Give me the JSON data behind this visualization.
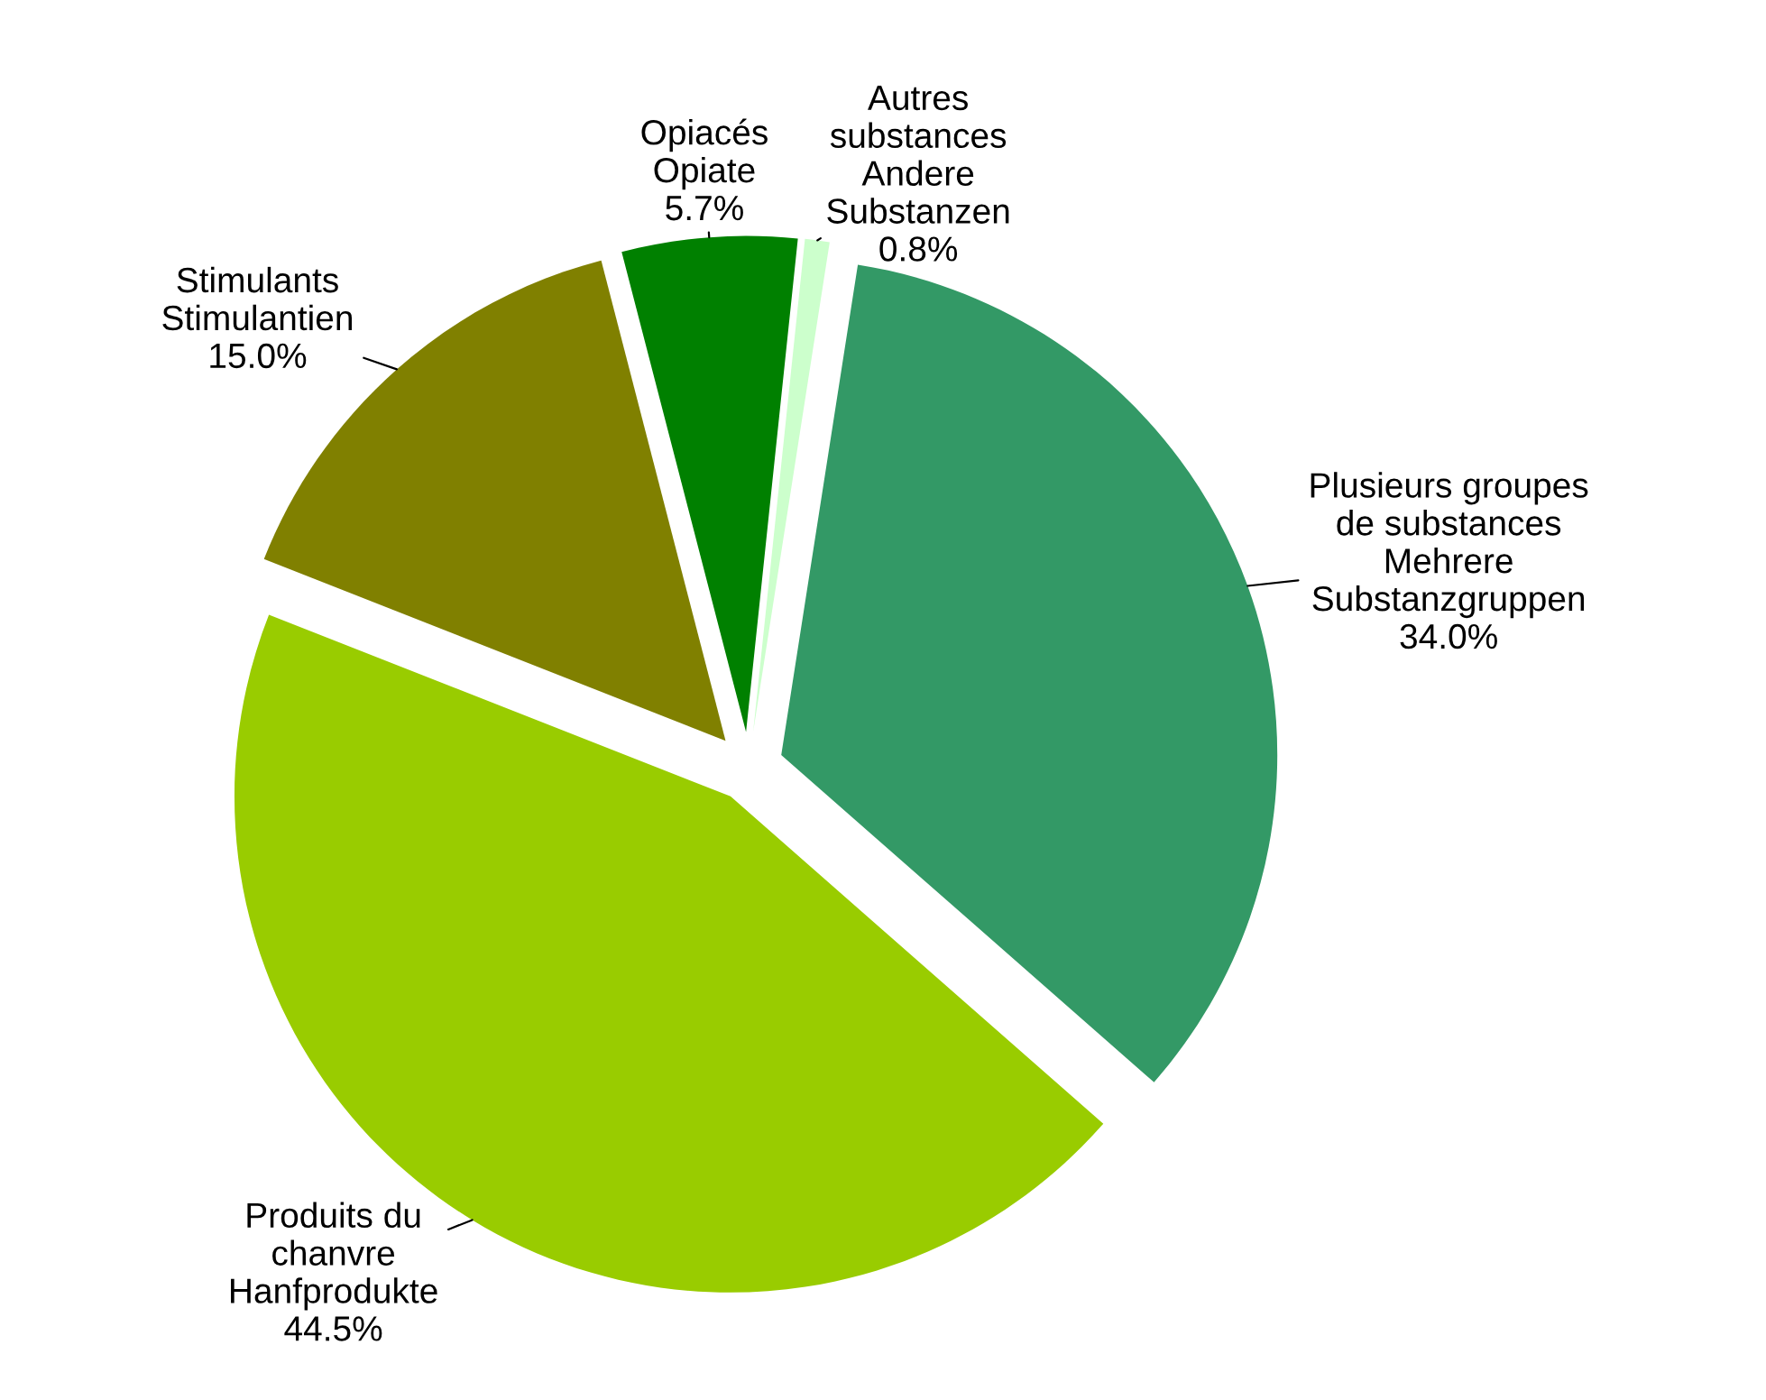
{
  "chart_data": {
    "type": "pie",
    "categories": [
      "Autres\nsubstances\nAndere\nSubstanzen",
      "Plusieurs groupes\nde substances\nMehrere\nSubstanzgruppen",
      "Produits du\nchanvre\nHanfprodukte",
      "Stimulants\nStimulantien",
      "Opiacés\nOpiate"
    ],
    "values": [
      0.8,
      34.0,
      44.5,
      15.0,
      5.7
    ],
    "value_labels": [
      "0.8%",
      "34.0%",
      "44.5%",
      "15.0%",
      "5.7%"
    ],
    "colors": [
      "#ccffcc",
      "#339966",
      "#99cc00",
      "#808000",
      "#008000"
    ]
  }
}
